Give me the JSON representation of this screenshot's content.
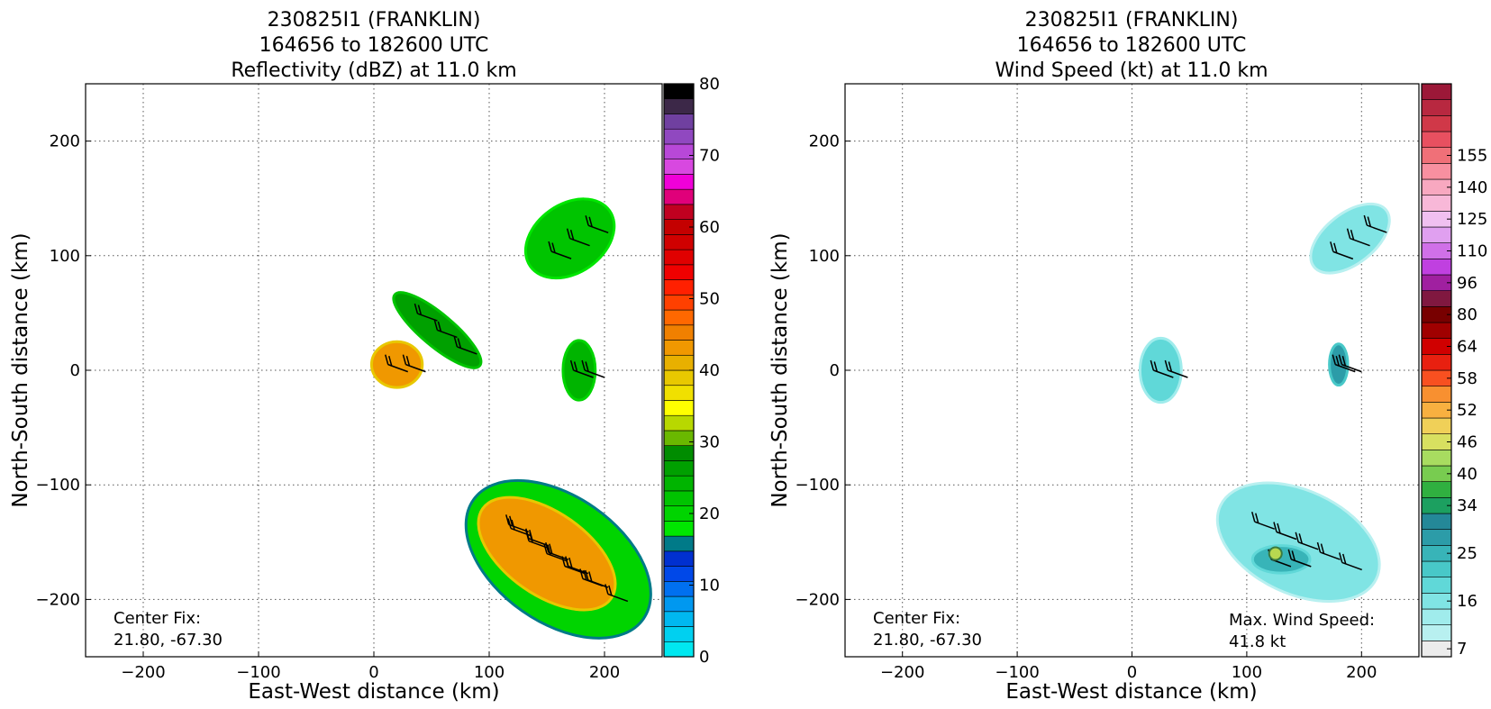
{
  "chart_data": [
    {
      "type": "heatmap",
      "title_lines": [
        "230825I1 (FRANKLIN)",
        "164656 to 182600 UTC",
        "Reflectivity (dBZ) at 11.0 km"
      ],
      "xlabel": "East-West distance (km)",
      "ylabel": "North-South distance (km)",
      "xlim": [
        -250,
        250
      ],
      "ylim": [
        -250,
        250
      ],
      "xticks": [
        -200,
        -100,
        0,
        100,
        200
      ],
      "yticks": [
        -200,
        -100,
        0,
        100,
        200
      ],
      "grid": true,
      "annotations": {
        "center_fix_label": "Center Fix:",
        "center_fix_value": "21.80, -67.30"
      },
      "colorbar": {
        "ticks": [
          "0",
          "10",
          "20",
          "30",
          "40",
          "50",
          "60",
          "70",
          "80"
        ],
        "colors": [
          "#00e8f0",
          "#00d0f0",
          "#00b8f0",
          "#0098f0",
          "#0070f0",
          "#0048e8",
          "#0030d0",
          "#007a88",
          "#00e600",
          "#00d400",
          "#00c400",
          "#00b400",
          "#00a000",
          "#008c00",
          "#6ab800",
          "#b8d800",
          "#ffff00",
          "#f0e000",
          "#e8c800",
          "#e8b000",
          "#f09800",
          "#f08000",
          "#ff6800",
          "#ff4000",
          "#ff2000",
          "#f00000",
          "#e00000",
          "#d00000",
          "#c40000",
          "#c00020",
          "#e0007a",
          "#f000d8",
          "#d848e0",
          "#b848d8",
          "#9048c0",
          "#7040a0",
          "#3c2848",
          "#000000"
        ]
      },
      "regions": [
        {
          "name": "northeast band",
          "x": 170,
          "y": 115,
          "rx": 42,
          "ry": 30,
          "rot": 35,
          "level": 10
        },
        {
          "name": "northwest arc",
          "x": 55,
          "y": 35,
          "rx": 48,
          "ry": 14,
          "rot": -40,
          "level": 12
        },
        {
          "name": "center cell",
          "x": 20,
          "y": 5,
          "rx": 22,
          "ry": 20,
          "rot": 0,
          "level": 20
        },
        {
          "name": "east cell",
          "x": 178,
          "y": 0,
          "rx": 14,
          "ry": 26,
          "rot": 0,
          "level": 11
        },
        {
          "name": "southeast mass",
          "x": 160,
          "y": -165,
          "rx": 90,
          "ry": 55,
          "rot": -35,
          "level": 9
        },
        {
          "name": "southeast core",
          "x": 150,
          "y": -160,
          "rx": 68,
          "ry": 36,
          "rot": -35,
          "level": 20
        }
      ]
    },
    {
      "type": "heatmap",
      "title_lines": [
        "230825I1 (FRANKLIN)",
        "164656 to 182600 UTC",
        "Wind Speed (kt) at 11.0 km"
      ],
      "xlabel": "East-West distance (km)",
      "ylabel": "North-South distance (km)",
      "xlim": [
        -250,
        250
      ],
      "ylim": [
        -250,
        250
      ],
      "xticks": [
        -200,
        -100,
        0,
        100,
        200
      ],
      "yticks": [
        -200,
        -100,
        0,
        100,
        200
      ],
      "grid": true,
      "annotations": {
        "center_fix_label": "Center Fix:",
        "center_fix_value": "21.80, -67.30",
        "max_wind_label": "Max. Wind Speed:",
        "max_wind_value": "41.8 kt"
      },
      "max_wind_kt": 41.8,
      "colorbar": {
        "ticks": [
          "7",
          "16",
          "25",
          "34",
          "40",
          "46",
          "52",
          "58",
          "64",
          "80",
          "96",
          "110",
          "125",
          "140",
          "155"
        ],
        "tick_positions": [
          0.5,
          3.5,
          6.5,
          9.5,
          11.5,
          13.5,
          15.5,
          17.5,
          19.5,
          21.5,
          23.5,
          25.5,
          27.5,
          29.5,
          31.5
        ],
        "colors": [
          "#ececec",
          "#b8f0f0",
          "#a0ecec",
          "#80e4e4",
          "#60d8d8",
          "#48c8c8",
          "#38b4b8",
          "#2c9ca8",
          "#248898",
          "#1ca060",
          "#30b040",
          "#78cc50",
          "#a8dc60",
          "#d8e060",
          "#f0d058",
          "#f8b040",
          "#f89030",
          "#f85020",
          "#e82010",
          "#d00000",
          "#a00000",
          "#780000",
          "#801840",
          "#a020a0",
          "#c040e0",
          "#d070e8",
          "#e0a0f0",
          "#f0c0f0",
          "#f8b8d8",
          "#f8a8c0",
          "#f890a0",
          "#f07078",
          "#e85060",
          "#d03848",
          "#b82840",
          "#9c1838"
        ]
      },
      "regions": [
        {
          "name": "northeast band",
          "x": 190,
          "y": 115,
          "rx": 40,
          "ry": 22,
          "rot": 38,
          "level": 3
        },
        {
          "name": "center cell",
          "x": 25,
          "y": 0,
          "rx": 18,
          "ry": 28,
          "rot": 0,
          "level": 4
        },
        {
          "name": "east cell",
          "x": 180,
          "y": 5,
          "rx": 8,
          "ry": 18,
          "rot": 0,
          "level": 7
        },
        {
          "name": "southeast mass",
          "x": 145,
          "y": -150,
          "rx": 75,
          "ry": 45,
          "rot": -25,
          "level": 3
        },
        {
          "name": "southeast core",
          "x": 130,
          "y": -165,
          "rx": 25,
          "ry": 12,
          "rot": 0,
          "level": 6
        }
      ],
      "max_wind_location": {
        "x": 125,
        "y": -160
      }
    }
  ]
}
